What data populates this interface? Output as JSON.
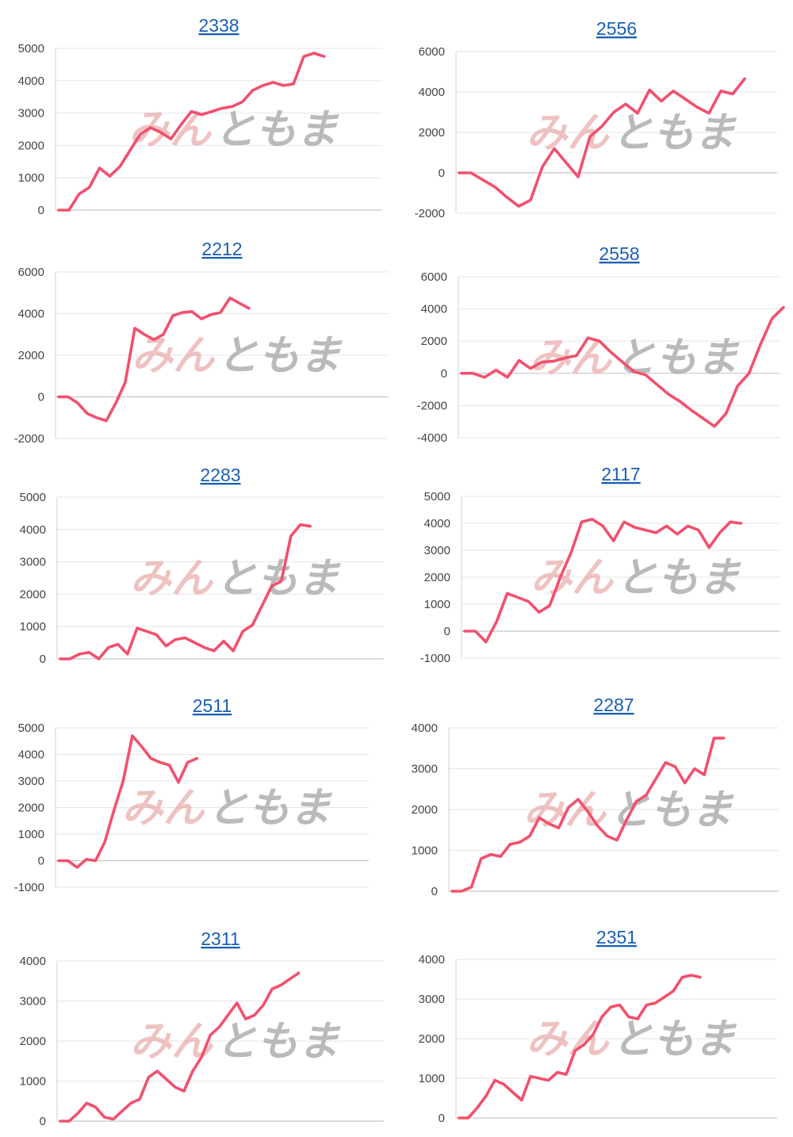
{
  "watermark": {
    "part1": "みん",
    "part2": "ともま"
  },
  "colors": {
    "line": "#f2506e",
    "title_link": "#1a5fb4"
  },
  "chart_data": [
    {
      "type": "line",
      "title": "2338",
      "ylim": [
        0,
        5000
      ],
      "yticks": [
        0,
        1000,
        2000,
        3000,
        4000,
        5000
      ],
      "grid": true,
      "values": [
        0,
        0,
        500,
        700,
        1300,
        1050,
        1350,
        1850,
        2350,
        2550,
        2400,
        2200,
        2650,
        3050,
        2950,
        3050,
        3150,
        3200,
        3350,
        3700,
        3850,
        3950,
        3850,
        3900,
        4750,
        4850,
        4750
      ]
    },
    {
      "type": "line",
      "title": "2556",
      "ylim": [
        -2000,
        6000
      ],
      "yticks": [
        -2000,
        0,
        2000,
        4000,
        6000
      ],
      "grid": true,
      "values": [
        0,
        0,
        -350,
        -700,
        -1200,
        -1650,
        -1350,
        300,
        1200,
        500,
        -200,
        1800,
        2300,
        3000,
        3400,
        2950,
        4100,
        3550,
        4050,
        3650,
        3250,
        2950,
        4050,
        3900,
        4650
      ]
    },
    {
      "type": "line",
      "title": "2212",
      "ylim": [
        -2000,
        6000
      ],
      "yticks": [
        -2000,
        0,
        2000,
        4000,
        6000
      ],
      "grid": true,
      "values": [
        0,
        0,
        -300,
        -800,
        -1000,
        -1150,
        -300,
        700,
        3300,
        3000,
        2750,
        3000,
        3900,
        4050,
        4100,
        3750,
        3950,
        4050,
        4750,
        4500,
        4250
      ]
    },
    {
      "type": "line",
      "title": "2558",
      "ylim": [
        -4000,
        6000
      ],
      "yticks": [
        -4000,
        -2000,
        0,
        2000,
        4000,
        6000
      ],
      "grid": true,
      "values": [
        0,
        0,
        -250,
        200,
        -250,
        800,
        300,
        700,
        750,
        950,
        1100,
        2200,
        2000,
        1300,
        700,
        100,
        -100,
        -700,
        -1300,
        -1750,
        -2300,
        -2800,
        -3300,
        -2500,
        -800,
        0,
        1800,
        3400,
        4100
      ]
    },
    {
      "type": "line",
      "title": "2283",
      "ylim": [
        0,
        5000
      ],
      "yticks": [
        0,
        1000,
        2000,
        3000,
        4000,
        5000
      ],
      "grid": true,
      "values": [
        0,
        0,
        150,
        200,
        0,
        350,
        450,
        150,
        950,
        850,
        750,
        400,
        600,
        650,
        500,
        350,
        250,
        550,
        250,
        850,
        1050,
        1650,
        2250,
        2400,
        3800,
        4150,
        4100
      ]
    },
    {
      "type": "line",
      "title": "2117",
      "ylim": [
        -1000,
        5000
      ],
      "yticks": [
        -1000,
        0,
        1000,
        2000,
        3000,
        4000,
        5000
      ],
      "grid": true,
      "values": [
        0,
        0,
        -400,
        350,
        1400,
        1250,
        1100,
        700,
        950,
        2000,
        2900,
        4050,
        4150,
        3900,
        3350,
        4050,
        3850,
        3750,
        3650,
        3900,
        3600,
        3900,
        3750,
        3100,
        3650,
        4050,
        4000
      ]
    },
    {
      "type": "line",
      "title": "2511",
      "ylim": [
        -1000,
        5000
      ],
      "yticks": [
        -1000,
        0,
        1000,
        2000,
        3000,
        4000,
        5000
      ],
      "grid": true,
      "values": [
        0,
        0,
        -250,
        50,
        0,
        700,
        1900,
        3000,
        4700,
        4300,
        3850,
        3700,
        3600,
        2950,
        3700,
        3850
      ]
    },
    {
      "type": "line",
      "title": "2287",
      "ylim": [
        0,
        4000
      ],
      "yticks": [
        0,
        1000,
        2000,
        3000,
        4000
      ],
      "grid": true,
      "values": [
        0,
        0,
        100,
        800,
        900,
        850,
        1150,
        1200,
        1350,
        1800,
        1650,
        1550,
        2050,
        2250,
        1950,
        1600,
        1350,
        1250,
        1750,
        2200,
        2350,
        2750,
        3150,
        3050,
        2650,
        3000,
        2850,
        3750,
        3750
      ]
    },
    {
      "type": "line",
      "title": "2311",
      "ylim": [
        0,
        4000
      ],
      "yticks": [
        0,
        1000,
        2000,
        3000,
        4000
      ],
      "grid": true,
      "values": [
        0,
        0,
        200,
        450,
        350,
        100,
        50,
        250,
        450,
        550,
        1100,
        1250,
        1050,
        850,
        750,
        1250,
        1600,
        2150,
        2350,
        2650,
        2950,
        2550,
        2650,
        2900,
        3300,
        3400,
        3550,
        3700
      ]
    },
    {
      "type": "line",
      "title": "2351",
      "ylim": [
        0,
        4000
      ],
      "yticks": [
        0,
        1000,
        2000,
        3000,
        4000
      ],
      "grid": true,
      "values": [
        0,
        0,
        250,
        550,
        950,
        850,
        650,
        450,
        1050,
        1000,
        950,
        1150,
        1100,
        1700,
        1850,
        2100,
        2550,
        2800,
        2850,
        2550,
        2500,
        2850,
        2900,
        3050,
        3200,
        3550,
        3600,
        3550
      ]
    }
  ]
}
